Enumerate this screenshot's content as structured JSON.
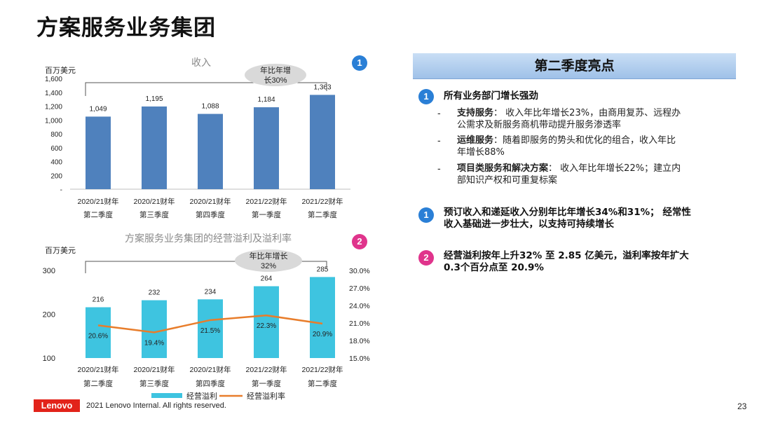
{
  "page_title": "方案服务业务集团",
  "chart_data": [
    {
      "type": "bar",
      "title": "收入",
      "ylabel": "百万美元",
      "categories": [
        [
          "2020/21财年",
          "第二季度"
        ],
        [
          "2020/21财年",
          "第三季度"
        ],
        [
          "2020/21财年",
          "第四季度"
        ],
        [
          "2021/22财年",
          "第一季度"
        ],
        [
          "2021/22财年",
          "第二季度"
        ]
      ],
      "values": [
        1049,
        1195,
        1088,
        1184,
        1363
      ],
      "value_labels": [
        "1,049",
        "1,195",
        "1,088",
        "1,184",
        "1,363"
      ],
      "ylim": [
        0,
        1600
      ],
      "yticks": [
        "-",
        "200",
        "400",
        "600",
        "800",
        "1,000",
        "1,200",
        "1,400",
        "1,600"
      ],
      "annotation": [
        "年比年增",
        "长30%"
      ],
      "color": "#4f81bd"
    },
    {
      "type": "bar+line",
      "title": "方案服务业务集团的经营溢利及溢利率",
      "ylabel": "百万美元",
      "categories": [
        [
          "2020/21财年",
          "第二季度"
        ],
        [
          "2020/21财年",
          "第三季度"
        ],
        [
          "2020/21财年",
          "第四季度"
        ],
        [
          "2021/22财年",
          "第一季度"
        ],
        [
          "2021/22财年",
          "第二季度"
        ]
      ],
      "series": [
        {
          "name": "经营溢利",
          "type": "bar",
          "values": [
            216,
            232,
            234,
            264,
            285
          ],
          "labels": [
            "216",
            "232",
            "234",
            "264",
            "285"
          ],
          "color": "#3ec4e0"
        },
        {
          "name": "经营溢利率",
          "type": "line",
          "values": [
            20.6,
            19.4,
            21.5,
            22.3,
            20.9
          ],
          "labels": [
            "20.6%",
            "19.4%",
            "21.5%",
            "22.3%",
            "20.9%"
          ],
          "color": "#e87d2b"
        }
      ],
      "ylim": [
        100,
        300
      ],
      "yticks": [
        "100",
        "200",
        "300"
      ],
      "y2lim": [
        15.0,
        30.0
      ],
      "y2ticks": [
        "15.0%",
        "18.0%",
        "21.0%",
        "24.0%",
        "27.0%",
        "30.0%"
      ],
      "annotation": [
        "年比年增长",
        "32%"
      ]
    }
  ],
  "badges": {
    "chart1": "1",
    "chart2": "2"
  },
  "highlights": {
    "title": "第二季度亮点",
    "items": [
      {
        "badge": "1",
        "heading": "所有业务部门增长强劲",
        "bullets": [
          {
            "dash": "-",
            "label": "支持服务",
            "sep": "：",
            "lines": [
              "收入年比年增长23%，由商用复苏、远程办",
              "公需求及新服务商机带动提升服务渗透率"
            ]
          },
          {
            "dash": "-",
            "label": "运维服务",
            "sep": "：",
            "lines": [
              "随着即服务的势头和优化的组合，收入年比",
              "年增长88%"
            ]
          },
          {
            "dash": "-",
            "label": "项目类服务和解决方案",
            "sep": "：",
            "lines": [
              "收入年比年增长22%；建立内",
              "部知识产权和可重复标案"
            ]
          }
        ]
      },
      {
        "badge": "1",
        "lines": [
          "预订收入和递延收入分别年比年增长34%和31%； 经常性",
          "收入基础进一步壮大，以支持可持续增长"
        ]
      },
      {
        "badge": "2",
        "lines": [
          "经营溢利按年上升32% 至 2.85 亿美元，溢利率按年扩大",
          "0.3个百分点至 20.9%"
        ]
      }
    ]
  },
  "footer": {
    "logo": "Lenovo",
    "copyright": "2021 Lenovo Internal. All rights reserved.",
    "page": "23"
  }
}
